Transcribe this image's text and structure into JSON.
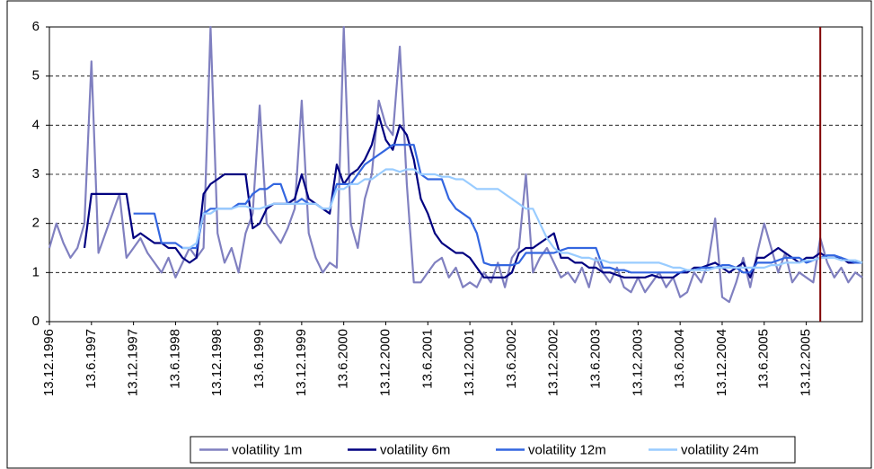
{
  "chart_data": {
    "type": "line",
    "categories": [
      "13.12.1996",
      null,
      null,
      null,
      null,
      null,
      "13.6.1997",
      null,
      null,
      null,
      null,
      null,
      "13.12.1997",
      null,
      null,
      null,
      null,
      null,
      "13.6.1998",
      null,
      null,
      null,
      null,
      null,
      "13.12.1998",
      null,
      null,
      null,
      null,
      null,
      "13.6.1999",
      null,
      null,
      null,
      null,
      null,
      "13.12.1999",
      null,
      null,
      null,
      null,
      null,
      "13.6.2000",
      null,
      null,
      null,
      null,
      null,
      "13.12.2000",
      null,
      null,
      null,
      null,
      null,
      "13.6.2001",
      null,
      null,
      null,
      null,
      null,
      "13.12.2001",
      null,
      null,
      null,
      null,
      null,
      "13.6.2002",
      null,
      null,
      null,
      null,
      null,
      "13.12.2002",
      null,
      null,
      null,
      null,
      null,
      "13.6.2003",
      null,
      null,
      null,
      null,
      null,
      "13.12.2003",
      null,
      null,
      null,
      null,
      null,
      "13.6.2004",
      null,
      null,
      null,
      null,
      null,
      "13.12.2004",
      null,
      null,
      null,
      null,
      null,
      "13.6.2005",
      null,
      null,
      null,
      null,
      null,
      "13.12.2005",
      null,
      null,
      null,
      null,
      null,
      null,
      null,
      null
    ],
    "series": [
      {
        "name": "volatility 1m",
        "color": "#8080c0",
        "values": [
          1.5,
          2.0,
          1.6,
          1.3,
          1.5,
          2.0,
          5.3,
          1.4,
          1.8,
          2.2,
          2.6,
          1.3,
          1.5,
          1.7,
          1.4,
          1.2,
          1.0,
          1.3,
          0.9,
          1.2,
          1.5,
          1.3,
          1.5,
          6.0,
          1.8,
          1.2,
          1.5,
          1.0,
          1.8,
          2.2,
          4.4,
          2.0,
          1.8,
          1.6,
          1.9,
          2.3,
          4.5,
          1.8,
          1.3,
          1.0,
          1.2,
          1.1,
          6.0,
          2.0,
          1.5,
          2.5,
          3.0,
          4.5,
          4.0,
          3.8,
          5.6,
          2.8,
          0.8,
          0.8,
          1.0,
          1.2,
          1.3,
          0.9,
          1.1,
          0.7,
          0.8,
          0.7,
          1.0,
          0.8,
          1.2,
          0.7,
          1.3,
          1.5,
          3.0,
          1.0,
          1.3,
          1.5,
          1.2,
          0.9,
          1.0,
          0.8,
          1.1,
          0.7,
          1.3,
          1.0,
          0.8,
          1.1,
          0.7,
          0.6,
          0.9,
          0.6,
          0.8,
          1.0,
          0.7,
          0.9,
          0.5,
          0.6,
          1.0,
          0.8,
          1.2,
          2.1,
          0.5,
          0.4,
          0.8,
          1.3,
          0.7,
          1.4,
          2.0,
          1.5,
          1.0,
          1.4,
          0.8,
          1.0,
          0.9,
          0.8,
          1.7,
          1.2,
          0.9,
          1.1,
          0.8,
          1.0,
          0.9
        ]
      },
      {
        "name": "volatility 6m",
        "color": "#000080",
        "values": [
          null,
          null,
          null,
          null,
          null,
          1.5,
          2.6,
          2.6,
          2.6,
          2.6,
          2.6,
          2.6,
          1.7,
          1.8,
          1.7,
          1.6,
          1.6,
          1.5,
          1.5,
          1.3,
          1.2,
          1.3,
          2.6,
          2.8,
          2.9,
          3.0,
          3.0,
          3.0,
          3.0,
          1.9,
          2.0,
          2.3,
          2.4,
          2.4,
          2.4,
          2.5,
          3.0,
          2.5,
          2.4,
          2.3,
          2.2,
          3.2,
          2.8,
          3.0,
          3.1,
          3.3,
          3.6,
          4.2,
          3.7,
          3.5,
          4.0,
          3.8,
          3.3,
          2.5,
          2.2,
          1.8,
          1.6,
          1.5,
          1.4,
          1.4,
          1.3,
          1.1,
          0.9,
          0.9,
          0.9,
          0.9,
          1.0,
          1.4,
          1.5,
          1.5,
          1.6,
          1.7,
          1.8,
          1.3,
          1.3,
          1.2,
          1.2,
          1.1,
          1.1,
          1.0,
          1.0,
          0.95,
          0.9,
          0.9,
          0.9,
          0.9,
          0.95,
          0.9,
          0.9,
          0.9,
          1.0,
          1.0,
          1.1,
          1.1,
          1.15,
          1.2,
          1.1,
          1.0,
          1.1,
          1.2,
          0.9,
          1.3,
          1.3,
          1.4,
          1.5,
          1.4,
          1.3,
          1.2,
          1.3,
          1.3,
          1.4,
          1.3,
          1.3,
          1.3,
          1.2,
          1.2,
          1.2
        ]
      },
      {
        "name": "volatility 12m",
        "color": "#3366e0",
        "values": [
          null,
          null,
          null,
          null,
          null,
          null,
          null,
          null,
          null,
          null,
          null,
          null,
          2.2,
          2.2,
          2.2,
          2.2,
          1.6,
          1.6,
          1.6,
          1.5,
          1.5,
          1.5,
          2.2,
          2.3,
          2.3,
          2.3,
          2.3,
          2.4,
          2.4,
          2.6,
          2.7,
          2.7,
          2.8,
          2.8,
          2.4,
          2.4,
          2.5,
          2.4,
          2.4,
          2.3,
          2.3,
          2.8,
          2.8,
          2.8,
          3.0,
          3.2,
          3.3,
          3.4,
          3.5,
          3.6,
          3.6,
          3.6,
          3.6,
          3.0,
          2.9,
          2.9,
          2.9,
          2.5,
          2.3,
          2.2,
          2.1,
          1.8,
          1.2,
          1.15,
          1.15,
          1.15,
          1.15,
          1.2,
          1.4,
          1.4,
          1.4,
          1.4,
          1.4,
          1.45,
          1.5,
          1.5,
          1.5,
          1.5,
          1.5,
          1.1,
          1.1,
          1.05,
          1.05,
          1.0,
          1.0,
          1.0,
          1.0,
          1.0,
          1.0,
          1.0,
          1.0,
          1.05,
          1.05,
          1.1,
          1.1,
          1.1,
          1.15,
          1.15,
          1.1,
          1.0,
          1.0,
          1.2,
          1.2,
          1.2,
          1.25,
          1.3,
          1.3,
          1.3,
          1.2,
          1.25,
          1.3,
          1.35,
          1.35,
          1.3,
          1.25,
          1.2,
          1.2
        ]
      },
      {
        "name": "volatility 24m",
        "color": "#99ccff",
        "values": [
          null,
          null,
          null,
          null,
          null,
          null,
          null,
          null,
          null,
          null,
          null,
          null,
          null,
          null,
          null,
          null,
          null,
          null,
          null,
          1.5,
          1.5,
          1.6,
          2.2,
          2.2,
          2.3,
          2.3,
          2.3,
          2.35,
          2.35,
          2.3,
          2.3,
          2.35,
          2.4,
          2.4,
          2.4,
          2.4,
          2.4,
          2.4,
          2.4,
          2.3,
          2.3,
          2.7,
          2.7,
          2.8,
          2.8,
          2.9,
          2.9,
          3.0,
          3.1,
          3.1,
          3.05,
          3.1,
          3.1,
          3.0,
          3.0,
          3.0,
          2.95,
          2.95,
          2.9,
          2.9,
          2.8,
          2.7,
          2.7,
          2.7,
          2.7,
          2.6,
          2.5,
          2.4,
          2.3,
          2.3,
          2.0,
          1.7,
          1.5,
          1.4,
          1.4,
          1.35,
          1.3,
          1.3,
          1.25,
          1.25,
          1.2,
          1.2,
          1.2,
          1.2,
          1.2,
          1.2,
          1.2,
          1.2,
          1.15,
          1.1,
          1.1,
          1.05,
          1.05,
          1.05,
          1.05,
          1.1,
          1.1,
          1.1,
          1.1,
          1.1,
          1.1,
          1.1,
          1.1,
          1.15,
          1.15,
          1.2,
          1.2,
          1.2,
          1.25,
          1.25,
          1.3,
          1.3,
          1.3,
          1.25,
          1.25,
          1.25,
          1.2
        ]
      }
    ],
    "ylim": [
      0,
      6
    ],
    "yticks": [
      0,
      1,
      2,
      3,
      4,
      5,
      6
    ],
    "grid": true,
    "marker_line": {
      "at": 110,
      "color": "#800000"
    },
    "legend": "bottom"
  }
}
